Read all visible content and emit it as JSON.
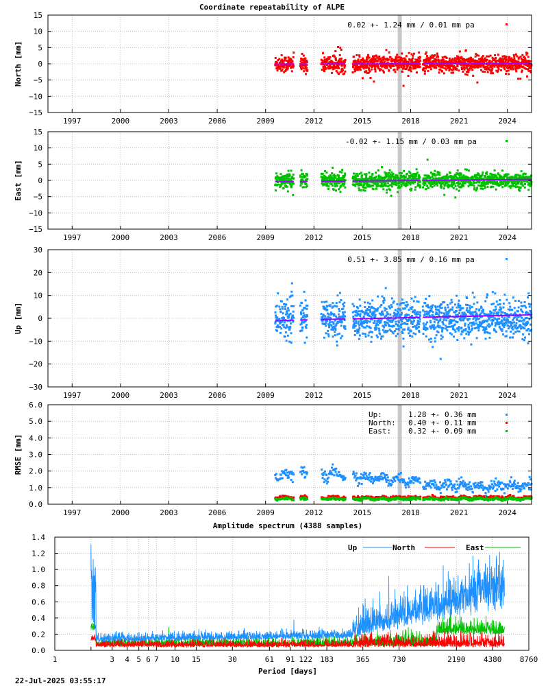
{
  "title": "Coordinate repeatability of ALPE",
  "timestamp": "22-Jul-2025 03:55:17",
  "colors": {
    "north": "#ff0000",
    "east": "#00c000",
    "up": "#1e90ff",
    "trend": "#a000ff",
    "outage": "#bdbdbd"
  },
  "chart_data": [
    {
      "id": "north",
      "type": "scatter",
      "ylabel": "North [mm]",
      "ylim": [
        -15,
        15
      ],
      "yticks": [
        -15,
        -10,
        -5,
        0,
        5,
        10,
        15
      ],
      "xlim": [
        1995.5,
        2025.5
      ],
      "xticks": [
        1997,
        2000,
        2003,
        2006,
        2009,
        2012,
        2015,
        2018,
        2021,
        2024
      ],
      "stats_label": "0.02 +- 1.24 mm /  0.01 mm pa",
      "series_color": "north",
      "spread": 1.3,
      "trend": [
        -0.1,
        0.1
      ],
      "grid": true
    },
    {
      "id": "east",
      "type": "scatter",
      "ylabel": "East [mm]",
      "ylim": [
        -15,
        15
      ],
      "yticks": [
        -15,
        -10,
        -5,
        0,
        5,
        10,
        15
      ],
      "xlim": [
        1995.5,
        2025.5
      ],
      "xticks": [
        1997,
        2000,
        2003,
        2006,
        2009,
        2012,
        2015,
        2018,
        2021,
        2024
      ],
      "stats_label": "-0.02 +- 1.15 mm /  0.03 mm pa",
      "series_color": "east",
      "spread": 1.2,
      "trend": [
        -0.4,
        0.3
      ],
      "grid": true
    },
    {
      "id": "up",
      "type": "scatter",
      "ylabel": "Up [mm]",
      "ylim": [
        -30,
        30
      ],
      "yticks": [
        -30,
        -20,
        -10,
        0,
        10,
        20,
        30
      ],
      "xlim": [
        1995.5,
        2025.5
      ],
      "xticks": [
        1997,
        2000,
        2003,
        2006,
        2009,
        2012,
        2015,
        2018,
        2021,
        2024
      ],
      "stats_label": "0.51 +- 3.85 mm /  0.16 mm pa",
      "series_color": "up",
      "spread": 4.0,
      "trend": [
        -1.0,
        1.5
      ],
      "grid": true
    },
    {
      "id": "rmse",
      "type": "scatter",
      "ylabel": "RMSE [mm]",
      "ylim": [
        0,
        6
      ],
      "yticks": [
        0.0,
        1.0,
        2.0,
        3.0,
        4.0,
        5.0,
        6.0
      ],
      "xlim": [
        1995.5,
        2025.5
      ],
      "xticks": [
        1997,
        2000,
        2003,
        2006,
        2009,
        2012,
        2015,
        2018,
        2021,
        2024
      ],
      "legend": [
        {
          "name": "Up:",
          "value": "1.28 +- 0.36 mm",
          "color": "up",
          "level": 1.28
        },
        {
          "name": "North:",
          "value": "0.40 +- 0.11 mm",
          "color": "north",
          "level": 0.4
        },
        {
          "name": "East:",
          "value": "0.32 +- 0.09 mm",
          "color": "east",
          "level": 0.32
        }
      ],
      "grid": true
    },
    {
      "id": "spectrum",
      "type": "line",
      "title": "Amplitude spectrum (4388 samples)",
      "xlabel": "Period [days]",
      "xscale": "log",
      "xlim": [
        1,
        8760
      ],
      "ylim": [
        0,
        1.4
      ],
      "xticks": [
        1,
        2,
        3,
        4,
        5,
        6,
        7,
        10,
        15,
        30,
        61,
        91,
        122,
        183,
        365,
        730,
        2190,
        4380,
        8760
      ],
      "xtick_labels": [
        "1",
        "",
        "3",
        "4",
        "5",
        "6",
        "7",
        "10",
        "15",
        "30",
        "61",
        "91",
        "122",
        "183",
        "365",
        "730",
        "2190",
        "4380",
        "8760"
      ],
      "yticks": [
        0.0,
        0.2,
        0.4,
        0.6,
        0.8,
        1.0,
        1.2,
        1.4
      ],
      "series": [
        {
          "name": "Up",
          "color": "up"
        },
        {
          "name": "North",
          "color": "north"
        },
        {
          "name": "East",
          "color": "east"
        }
      ],
      "peaks": {
        "up": [
          [
            2,
            1.31
          ],
          [
            2.05,
            0.92
          ],
          [
            365,
            0.58
          ],
          [
            600,
            0.92
          ],
          [
            1000,
            0.75
          ],
          [
            1700,
            1.05
          ],
          [
            2600,
            0.92
          ],
          [
            5000,
            1.22
          ]
        ]
      },
      "grid": true
    }
  ],
  "data_span": {
    "start": 2009.6,
    "end": 2025.5,
    "gaps": [
      [
        2009.8,
        2009.85
      ],
      [
        2010.75,
        2011.15
      ],
      [
        2011.6,
        2012.45
      ],
      [
        2013.95,
        2014.4
      ],
      [
        2018.6,
        2018.75
      ]
    ],
    "outage": [
      2017.2,
      2017.45
    ]
  }
}
